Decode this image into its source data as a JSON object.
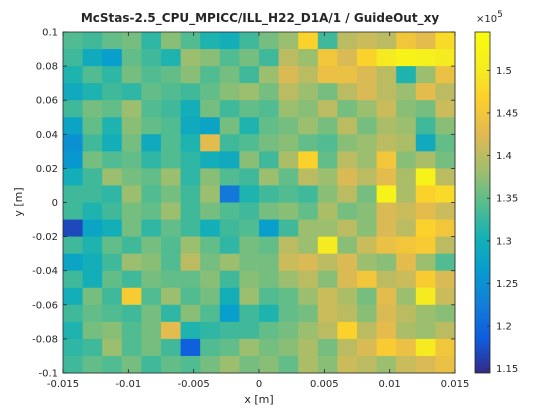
{
  "chart_data": {
    "type": "heatmap",
    "title": "McStas-2.5_CPU_MPICC/ILL_H22_D1A/1 / GuideOut_xy",
    "xlabel": "x [m]",
    "ylabel": "y [m]",
    "xlim": [
      -0.015,
      0.015
    ],
    "ylim": [
      -0.1,
      0.1
    ],
    "x_ticks": [
      "-0.015",
      "-0.01",
      "-0.005",
      "0",
      "0.005",
      "0.01",
      "0.015"
    ],
    "y_ticks": [
      "0.1",
      "0.08",
      "0.06",
      "0.04",
      "0.02",
      "0",
      "-0.02",
      "-0.04",
      "-0.06",
      "-0.08",
      "-0.1"
    ],
    "colormap": "parula",
    "clim": [
      1.145,
      1.545
    ],
    "colorbar_multiplier": "×10",
    "colorbar_exponent": "5",
    "colorbar_ticks": [
      "1.5",
      "1.45",
      "1.4",
      "1.35",
      "1.3",
      "1.25",
      "1.2",
      "1.15"
    ],
    "grid_cols": 20,
    "grid_rows": 20,
    "rows_top_to_bottom": [
      [
        1.34,
        1.33,
        1.35,
        1.36,
        1.32,
        1.37,
        1.34,
        1.31,
        1.3,
        1.33,
        1.36,
        1.38,
        1.47,
        1.33,
        1.4,
        1.41,
        1.4,
        1.45,
        1.43,
        1.48
      ],
      [
        1.33,
        1.29,
        1.27,
        1.35,
        1.33,
        1.31,
        1.38,
        1.37,
        1.34,
        1.36,
        1.33,
        1.4,
        1.38,
        1.45,
        1.42,
        1.47,
        1.5,
        1.52,
        1.51,
        1.5
      ],
      [
        1.31,
        1.34,
        1.32,
        1.36,
        1.34,
        1.35,
        1.37,
        1.34,
        1.36,
        1.33,
        1.38,
        1.42,
        1.4,
        1.44,
        1.44,
        1.42,
        1.4,
        1.31,
        1.38,
        1.44
      ],
      [
        1.29,
        1.31,
        1.33,
        1.32,
        1.35,
        1.34,
        1.33,
        1.35,
        1.37,
        1.38,
        1.36,
        1.4,
        1.38,
        1.36,
        1.4,
        1.42,
        1.4,
        1.38,
        1.43,
        1.4
      ],
      [
        1.33,
        1.36,
        1.35,
        1.38,
        1.34,
        1.33,
        1.3,
        1.36,
        1.33,
        1.35,
        1.34,
        1.38,
        1.37,
        1.4,
        1.36,
        1.38,
        1.41,
        1.37,
        1.36,
        1.41
      ],
      [
        1.28,
        1.35,
        1.31,
        1.37,
        1.35,
        1.34,
        1.29,
        1.28,
        1.36,
        1.31,
        1.35,
        1.36,
        1.38,
        1.36,
        1.4,
        1.36,
        1.39,
        1.38,
        1.33,
        1.37
      ],
      [
        1.25,
        1.33,
        1.3,
        1.36,
        1.29,
        1.34,
        1.31,
        1.43,
        1.33,
        1.34,
        1.36,
        1.37,
        1.35,
        1.34,
        1.37,
        1.38,
        1.4,
        1.39,
        1.29,
        1.35
      ],
      [
        1.26,
        1.36,
        1.34,
        1.35,
        1.32,
        1.34,
        1.32,
        1.3,
        1.29,
        1.37,
        1.33,
        1.39,
        1.47,
        1.35,
        1.4,
        1.38,
        1.45,
        1.37,
        1.39,
        1.36
      ],
      [
        1.3,
        1.33,
        1.38,
        1.36,
        1.35,
        1.38,
        1.32,
        1.37,
        1.34,
        1.33,
        1.38,
        1.35,
        1.4,
        1.38,
        1.42,
        1.4,
        1.43,
        1.39,
        1.52,
        1.4
      ],
      [
        1.33,
        1.33,
        1.32,
        1.38,
        1.34,
        1.36,
        1.33,
        1.38,
        1.22,
        1.31,
        1.33,
        1.34,
        1.33,
        1.37,
        1.4,
        1.36,
        1.52,
        1.39,
        1.47,
        1.48
      ],
      [
        1.33,
        1.31,
        1.33,
        1.36,
        1.35,
        1.38,
        1.33,
        1.36,
        1.34,
        1.33,
        1.36,
        1.37,
        1.35,
        1.39,
        1.36,
        1.37,
        1.42,
        1.41,
        1.43,
        1.41
      ],
      [
        1.17,
        1.28,
        1.3,
        1.36,
        1.32,
        1.35,
        1.33,
        1.3,
        1.33,
        1.34,
        1.27,
        1.33,
        1.38,
        1.38,
        1.4,
        1.37,
        1.42,
        1.4,
        1.47,
        1.45
      ],
      [
        1.33,
        1.31,
        1.35,
        1.33,
        1.36,
        1.34,
        1.38,
        1.35,
        1.32,
        1.36,
        1.35,
        1.4,
        1.38,
        1.5,
        1.37,
        1.41,
        1.44,
        1.45,
        1.46,
        1.4
      ],
      [
        1.28,
        1.3,
        1.33,
        1.38,
        1.37,
        1.34,
        1.4,
        1.36,
        1.38,
        1.36,
        1.36,
        1.41,
        1.42,
        1.4,
        1.42,
        1.38,
        1.37,
        1.43,
        1.38,
        1.34
      ],
      [
        1.33,
        1.3,
        1.35,
        1.33,
        1.36,
        1.35,
        1.35,
        1.37,
        1.33,
        1.37,
        1.36,
        1.38,
        1.4,
        1.37,
        1.42,
        1.45,
        1.4,
        1.41,
        1.46,
        1.42
      ],
      [
        1.3,
        1.36,
        1.33,
        1.46,
        1.34,
        1.38,
        1.34,
        1.36,
        1.3,
        1.38,
        1.34,
        1.35,
        1.38,
        1.41,
        1.39,
        1.36,
        1.43,
        1.38,
        1.5,
        1.41
      ],
      [
        1.33,
        1.35,
        1.34,
        1.33,
        1.36,
        1.32,
        1.37,
        1.34,
        1.27,
        1.33,
        1.31,
        1.35,
        1.36,
        1.41,
        1.4,
        1.37,
        1.42,
        1.4,
        1.38,
        1.37
      ],
      [
        1.31,
        1.36,
        1.37,
        1.34,
        1.36,
        1.43,
        1.31,
        1.32,
        1.33,
        1.33,
        1.35,
        1.36,
        1.38,
        1.4,
        1.47,
        1.4,
        1.43,
        1.39,
        1.38,
        1.4
      ],
      [
        1.32,
        1.33,
        1.38,
        1.34,
        1.36,
        1.33,
        1.19,
        1.34,
        1.35,
        1.38,
        1.36,
        1.37,
        1.39,
        1.36,
        1.4,
        1.42,
        1.46,
        1.44,
        1.5,
        1.45
      ],
      [
        1.33,
        1.35,
        1.34,
        1.36,
        1.33,
        1.35,
        1.34,
        1.36,
        1.38,
        1.36,
        1.37,
        1.35,
        1.39,
        1.37,
        1.41,
        1.4,
        1.38,
        1.41,
        1.42,
        1.44
      ]
    ]
  }
}
